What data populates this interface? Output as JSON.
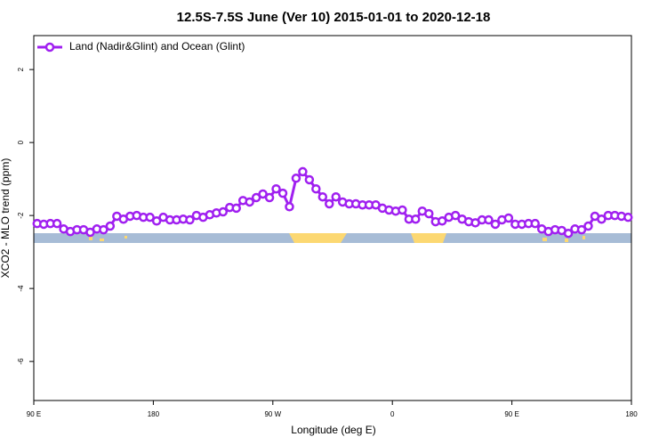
{
  "chart_data": {
    "type": "line",
    "title": "12.5S-7.5S June (Ver 10)   2015-01-01 to 2020-12-18",
    "xlabel": "Longitude (deg E)",
    "ylabel": "XCO2 - MLO trend (ppm)",
    "xlim": [
      90,
      540
    ],
    "ylim": [
      -7.07,
      2.93
    ],
    "xticks": [
      {
        "value": 90,
        "label": "90 E"
      },
      180,
      {
        "value": 270,
        "label": "90 W"
      },
      {
        "value": 360,
        "label": "0"
      },
      {
        "value": 450,
        "label": "90 E"
      },
      {
        "value": 540,
        "label": "180"
      }
    ],
    "yticks": [
      2,
      0,
      -2,
      -4,
      -6
    ],
    "legend": "top-left",
    "x": [
      92.5,
      97.5,
      102.5,
      107.5,
      112.5,
      117.5,
      122.5,
      127.5,
      132.5,
      137.5,
      142.5,
      147.5,
      152.5,
      157.5,
      162.5,
      167.5,
      172.5,
      177.5,
      182.5,
      187.5,
      192.5,
      197.5,
      202.5,
      207.5,
      212.5,
      217.5,
      222.5,
      227.5,
      232.5,
      237.5,
      242.5,
      247.5,
      252.5,
      257.5,
      262.5,
      267.5,
      272.5,
      277.5,
      282.5,
      287.5,
      292.5,
      297.5,
      302.5,
      307.5,
      312.5,
      317.5,
      322.5,
      327.5,
      332.5,
      337.5,
      342.5,
      347.5,
      352.5,
      357.5,
      362.5,
      367.5,
      372.5,
      377.5,
      382.5,
      387.5,
      392.5,
      397.5,
      402.5,
      407.5,
      412.5,
      417.5,
      422.5,
      427.5,
      432.5,
      437.5,
      442.5,
      447.5,
      452.5,
      457.5,
      462.5,
      467.5,
      472.5,
      477.5,
      482.5,
      487.5,
      492.5,
      497.5,
      502.5,
      507.5,
      512.5,
      517.5,
      522.5,
      527.5,
      532.5,
      537.5
    ],
    "series": [
      {
        "name": "Land (Nadir&Glint) and Ocean (Glint)",
        "color": "#a020f0",
        "values": [
          -2.22,
          -2.24,
          -2.22,
          -2.22,
          -2.37,
          -2.44,
          -2.39,
          -2.39,
          -2.46,
          -2.37,
          -2.39,
          -2.29,
          -2.02,
          -2.1,
          -2.02,
          -2.0,
          -2.05,
          -2.05,
          -2.15,
          -2.05,
          -2.12,
          -2.12,
          -2.1,
          -2.12,
          -2.0,
          -2.05,
          -1.98,
          -1.93,
          -1.9,
          -1.78,
          -1.8,
          -1.59,
          -1.63,
          -1.51,
          -1.41,
          -1.51,
          -1.27,
          -1.39,
          -1.76,
          -0.98,
          -0.8,
          -1.02,
          -1.27,
          -1.49,
          -1.68,
          -1.49,
          -1.63,
          -1.68,
          -1.68,
          -1.71,
          -1.71,
          -1.71,
          -1.8,
          -1.85,
          -1.88,
          -1.85,
          -2.1,
          -2.1,
          -1.88,
          -1.95,
          -2.17,
          -2.15,
          -2.05,
          -2.0,
          -2.1,
          -2.17,
          -2.2,
          -2.12,
          -2.12,
          -2.24,
          -2.12,
          -2.07,
          -2.24,
          -2.24,
          -2.22,
          -2.22,
          -2.37,
          -2.44,
          -2.39,
          -2.41,
          -2.49,
          -2.37,
          -2.39,
          -2.29,
          -2.02,
          -2.1,
          -2.0,
          -2.0,
          -2.02,
          -2.05
        ]
      }
    ]
  }
}
